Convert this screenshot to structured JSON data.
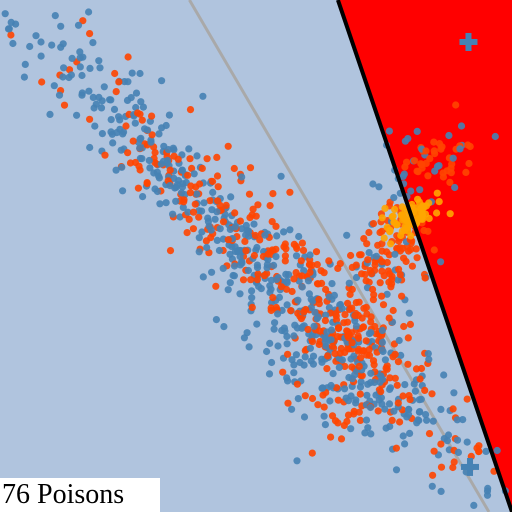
{
  "caption": "76 Poisons",
  "colors": {
    "background": "#b0c4de",
    "region": "#ff0000",
    "boundary": "#000000",
    "reference_line": "#a9a9a9",
    "class_a": "#4682b4",
    "class_b": "#ff4500",
    "poison": "#ffa500"
  },
  "chart_data": {
    "type": "scatter",
    "xlim": [
      0,
      1
    ],
    "ylim": [
      0,
      1
    ],
    "grid": false,
    "region": {
      "color": "red",
      "polygon": [
        [
          0.66,
          1.0
        ],
        [
          1.0,
          1.0
        ],
        [
          1.0,
          0.0
        ]
      ]
    },
    "boundary_line": {
      "color": "black",
      "points": [
        [
          0.66,
          1.0
        ],
        [
          1.0,
          0.0
        ]
      ]
    },
    "reference_line": {
      "color": "gray",
      "points": [
        [
          0.37,
          1.0
        ],
        [
          0.955,
          0.0
        ]
      ]
    },
    "markers": [
      {
        "type": "plus",
        "color": "steelblue",
        "point": [
          0.915,
          0.918
        ]
      },
      {
        "type": "plus",
        "color": "steelblue",
        "point": [
          0.918,
          0.088
        ]
      }
    ],
    "clusters": {
      "class_a": {
        "color": "steelblue",
        "count": 620,
        "seed": 7,
        "components": [
          {
            "mean": [
              0.5,
              0.5
            ],
            "std_long": 0.34,
            "std_short": 0.045,
            "angle_deg": -45,
            "weight": 0.82
          },
          {
            "mean": [
              0.62,
              0.3
            ],
            "std_long": 0.08,
            "std_short": 0.05,
            "angle_deg": -45,
            "weight": 0.1
          },
          {
            "mean": [
              0.82,
              0.68
            ],
            "std_long": 0.05,
            "std_short": 0.03,
            "angle_deg": 30,
            "weight": 0.05
          },
          {
            "mean": [
              0.77,
              0.48
            ],
            "std_long": 0.05,
            "std_short": 0.03,
            "angle_deg": -45,
            "weight": 0.03
          }
        ],
        "extra_points": [
          [
            0.08,
            0.918
          ],
          [
            0.265,
            0.79
          ],
          [
            0.58,
            0.1
          ]
        ]
      },
      "class_b": {
        "color": "orangered",
        "count": 560,
        "seed": 13,
        "components": [
          {
            "mean": [
              0.52,
              0.5
            ],
            "std_long": 0.3,
            "std_short": 0.045,
            "angle_deg": -45,
            "weight": 0.62
          },
          {
            "mean": [
              0.76,
              0.5
            ],
            "std_long": 0.05,
            "std_short": 0.035,
            "angle_deg": 60,
            "weight": 0.18
          },
          {
            "mean": [
              0.7,
              0.33
            ],
            "std_long": 0.06,
            "std_short": 0.04,
            "angle_deg": 40,
            "weight": 0.1
          },
          {
            "mean": [
              0.85,
              0.7
            ],
            "std_long": 0.035,
            "std_short": 0.025,
            "angle_deg": 0,
            "weight": 0.06
          },
          {
            "mean": [
              0.66,
              0.2
            ],
            "std_long": 0.04,
            "std_short": 0.02,
            "angle_deg": 0,
            "weight": 0.04
          }
        ],
        "extra_points": [
          [
            0.232,
            0.84
          ],
          [
            0.89,
            0.795
          ],
          [
            0.935,
            0.118
          ],
          [
            0.61,
            0.115
          ]
        ]
      },
      "poison": {
        "color": "orange",
        "count": 76,
        "seed": 21,
        "components": [
          {
            "mean": [
              0.8,
              0.575
            ],
            "std_long": 0.028,
            "std_short": 0.016,
            "angle_deg": 35,
            "weight": 1.0
          }
        ],
        "extra_points": []
      }
    }
  }
}
